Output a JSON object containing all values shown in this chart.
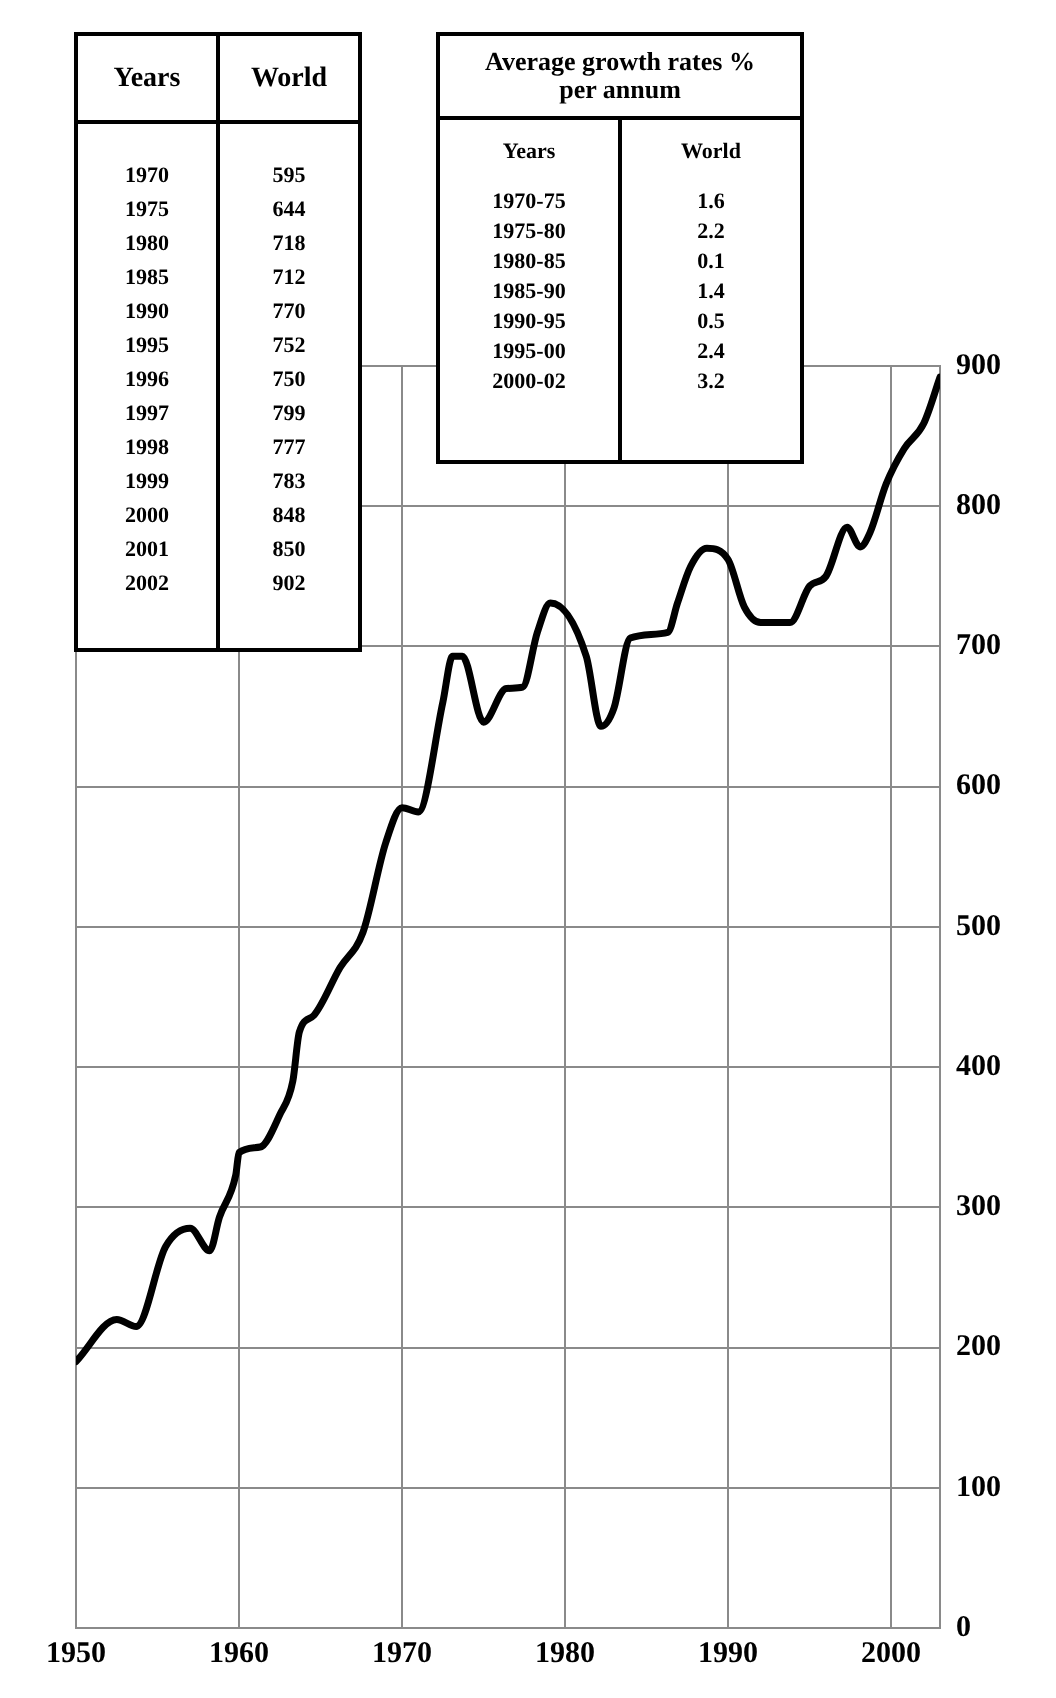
{
  "chart_data": {
    "type": "line",
    "x": [
      1950,
      1952.5,
      1953.7,
      1955.5,
      1957,
      1958.2,
      1958.8,
      1959.8,
      1960,
      1961.3,
      1962.5,
      1963.3,
      1963.7,
      1964.6,
      1966.2,
      1967.6,
      1969,
      1970,
      1971,
      1972.5,
      1973.1,
      1973.7,
      1975,
      1976.4,
      1977.4,
      1978.3,
      1979.1,
      1981.3,
      1982.2,
      1983,
      1984,
      1986.3,
      1986.9,
      1987.7,
      1988.7,
      1990,
      1991,
      1992,
      1993.8,
      1995,
      1996,
      1997.3,
      1998.1,
      1998.7,
      1999.7,
      2000.8,
      2002,
      2003
    ],
    "series": [
      {
        "color": "#000000",
        "values": [
          190,
          220,
          215,
          272,
          285,
          269,
          293,
          323,
          339,
          343,
          366,
          390,
          425,
          437,
          471,
          496,
          560,
          585,
          582,
          660,
          693,
          693,
          646,
          670,
          671,
          710,
          731,
          693,
          643,
          656,
          706,
          710,
          731,
          757,
          770,
          762,
          728,
          717,
          717,
          743,
          750,
          785,
          771,
          781,
          816,
          841,
          859,
          892
        ]
      }
    ],
    "xlim": [
      1950,
      2003
    ],
    "xticks": [
      1950,
      1960,
      1970,
      1980,
      1990,
      2000
    ],
    "ylim": [
      0,
      900
    ],
    "yticks": [
      0,
      100,
      200,
      300,
      400,
      500,
      600,
      700,
      800,
      900
    ],
    "grid": true,
    "marker": "none",
    "line_style": "solid",
    "annotations": [
      "Years",
      "World",
      "1970",
      "595",
      "1975",
      "644",
      "1980",
      "718",
      "1985",
      "712",
      "1990",
      "770",
      "1995",
      "752",
      "1996",
      "750",
      "1997",
      "799",
      "1998",
      "777",
      "1999",
      "783",
      "2000",
      "848",
      "2001",
      "850",
      "2002",
      "902",
      "Average growth rates % per annum",
      "Years",
      "World",
      "1970-75",
      "1.6",
      "1975-80",
      "2.2",
      "1980-85",
      "0.1",
      "1985-90",
      "1.4",
      "1990-95",
      "0.5",
      "1995-00",
      "2.4",
      "2000-02",
      "3.2"
    ]
  }
}
